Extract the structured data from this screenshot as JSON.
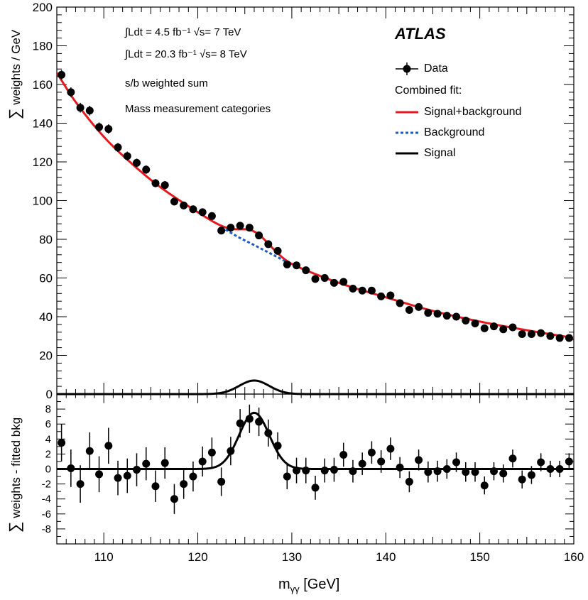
{
  "chart_data": [
    {
      "type": "scatter",
      "panel": "top",
      "ylabel_prefix": "∑",
      "ylabel": "weights / GeV",
      "xlim": [
        105,
        160
      ],
      "ylim": [
        0,
        200
      ],
      "yticks": [
        0,
        20,
        40,
        60,
        80,
        100,
        120,
        140,
        160,
        180,
        200
      ],
      "annotations": [
        "∫Ldt = 4.5 fb⁻¹ √s= 7 TeV",
        "∫Ldt = 20.3 fb⁻¹ √s= 8 TeV",
        "s/b weighted sum",
        "Mass measurement categories"
      ],
      "experiment": "ATLAS",
      "legend": {
        "data": "Data",
        "header": "Combined fit:",
        "sb": "Signal+background",
        "bkg": "Background",
        "sig": "Signal"
      },
      "colors": {
        "sb": "#e8191e",
        "bkg": "#1f5bc4",
        "sig": "#000000",
        "data": "#000000"
      },
      "series": [
        {
          "name": "Data",
          "x": [
            105.5,
            106.5,
            107.5,
            108.5,
            109.5,
            110.5,
            111.5,
            112.5,
            113.5,
            114.5,
            115.5,
            116.5,
            117.5,
            118.5,
            119.5,
            120.5,
            121.5,
            122.5,
            123.5,
            124.5,
            125.5,
            126.5,
            127.5,
            128.5,
            129.5,
            130.5,
            131.5,
            132.5,
            133.5,
            134.5,
            135.5,
            136.5,
            137.5,
            138.5,
            139.5,
            140.5,
            141.5,
            142.5,
            143.5,
            144.5,
            145.5,
            146.5,
            147.5,
            148.5,
            149.5,
            150.5,
            151.5,
            152.5,
            153.5,
            154.5,
            155.5,
            156.5,
            157.5,
            158.5,
            159.5
          ],
          "y": [
            165,
            156,
            148,
            146.5,
            138,
            137,
            127.5,
            123,
            119.5,
            116,
            109,
            108,
            99.5,
            97.5,
            95.5,
            94,
            92,
            84.5,
            86,
            87,
            86,
            82,
            77.5,
            74,
            67,
            66.5,
            64,
            59.5,
            60,
            57.5,
            58,
            54.5,
            53.5,
            53.5,
            50.5,
            51,
            47,
            43.5,
            45,
            42,
            41.5,
            40.5,
            40,
            38,
            36.5,
            34,
            35,
            33.5,
            34.5,
            31,
            31,
            31.5,
            30,
            29,
            29
          ],
          "errors": [
            2.5,
            2.5,
            2.5,
            2.5,
            2.4,
            2.4,
            2.3,
            2.3,
            2.2,
            2.2,
            2.1,
            2.1,
            2,
            2,
            2,
            2,
            2,
            1.9,
            1.9,
            1.9,
            1.9,
            1.9,
            1.8,
            1.8,
            1.7,
            1.7,
            1.7,
            1.6,
            1.6,
            1.6,
            1.6,
            1.5,
            1.5,
            1.5,
            1.5,
            1.5,
            1.4,
            1.4,
            1.4,
            1.4,
            1.4,
            1.3,
            1.3,
            1.3,
            1.3,
            1.2,
            1.2,
            1.2,
            1.2,
            1.2,
            1.2,
            1.2,
            1.1,
            1.1,
            1.1
          ]
        }
      ],
      "fit": {
        "background_points": [
          [
            105,
            166
          ],
          [
            107,
            151
          ],
          [
            110,
            133
          ],
          [
            113,
            119
          ],
          [
            116,
            107
          ],
          [
            120,
            94
          ],
          [
            124,
            82
          ],
          [
            126,
            77
          ],
          [
            128,
            72
          ],
          [
            130,
            67
          ],
          [
            135,
            57.5
          ],
          [
            140,
            50
          ],
          [
            145,
            43
          ],
          [
            150,
            37.5
          ],
          [
            155,
            33
          ],
          [
            160,
            29
          ]
        ],
        "signal_peak_gev": 126,
        "signal_sigma_gev": 1.6,
        "signal_peak_top": 7,
        "signal_peak_bottom": 7.5
      }
    },
    {
      "type": "scatter",
      "panel": "bottom",
      "ylabel_prefix": "∑",
      "ylabel": "weights - fitted bkg",
      "xlabel_main": "m",
      "xlabel_sub": "γγ",
      "xlabel_unit": "[GeV]",
      "xlim": [
        105,
        160
      ],
      "ylim": [
        -10,
        10
      ],
      "xticks": [
        110,
        120,
        130,
        140,
        150,
        160
      ],
      "yticks": [
        -8,
        -6,
        -4,
        -2,
        0,
        2,
        4,
        6,
        8
      ],
      "series": [
        {
          "name": "Data",
          "x": [
            105.5,
            106.5,
            107.5,
            108.5,
            109.5,
            110.5,
            111.5,
            112.5,
            113.5,
            114.5,
            115.5,
            116.5,
            117.5,
            118.5,
            119.5,
            120.5,
            121.5,
            122.5,
            123.5,
            124.5,
            125.5,
            126.5,
            127.5,
            128.5,
            129.5,
            130.5,
            131.5,
            132.5,
            133.5,
            134.5,
            135.5,
            136.5,
            137.5,
            138.5,
            139.5,
            140.5,
            141.5,
            142.5,
            143.5,
            144.5,
            145.5,
            146.5,
            147.5,
            148.5,
            149.5,
            150.5,
            151.5,
            152.5,
            153.5,
            154.5,
            155.5,
            156.5,
            157.5,
            158.5,
            159.5
          ],
          "y": [
            3.5,
            0.1,
            -2,
            2.4,
            -0.7,
            3.1,
            -1.2,
            -0.9,
            -0.1,
            0.7,
            -2.3,
            0.8,
            -4,
            -2,
            -1,
            1,
            2.2,
            -1.7,
            2.4,
            6.1,
            6.7,
            6.3,
            4.8,
            3.1,
            -1,
            -0.2,
            -0.2,
            -2.5,
            -0.2,
            -0.1,
            1.9,
            -0.3,
            0.7,
            2.2,
            1,
            2.7,
            0.2,
            -1.7,
            1.2,
            -0.4,
            -0.3,
            0,
            0.9,
            -0.4,
            -0.4,
            -2.2,
            -0.3,
            -0.6,
            1.4,
            -1.4,
            -0.8,
            0.9,
            0,
            0,
            1
          ],
          "errors": [
            2.5,
            2.5,
            2.5,
            2.5,
            2.4,
            2.4,
            2.3,
            2.3,
            2.2,
            2.2,
            2.1,
            2.1,
            2,
            2,
            2,
            2,
            2,
            1.9,
            1.9,
            1.9,
            1.9,
            1.9,
            1.8,
            1.8,
            1.7,
            1.7,
            1.7,
            1.6,
            1.6,
            1.6,
            1.6,
            1.5,
            1.5,
            1.5,
            1.5,
            1.5,
            1.4,
            1.4,
            1.4,
            1.4,
            1.4,
            1.3,
            1.3,
            1.3,
            1.3,
            1.2,
            1.2,
            1.2,
            1.2,
            1.2,
            1.2,
            1.2,
            1.1,
            1.1,
            1.1
          ]
        }
      ]
    }
  ]
}
